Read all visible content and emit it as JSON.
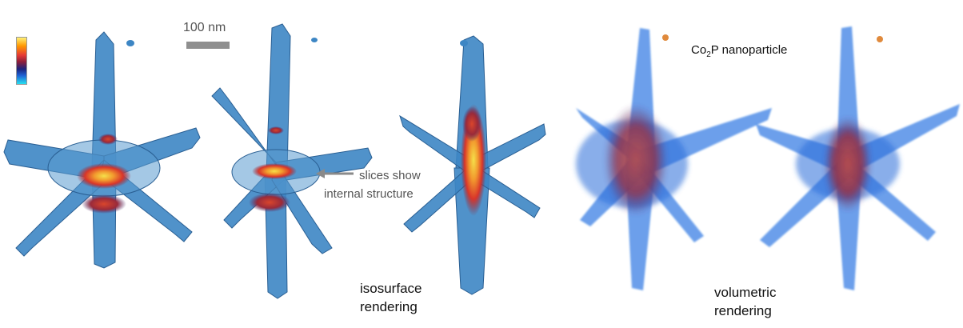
{
  "scale_bar": {
    "label": "100 nm"
  },
  "annotations": {
    "particle_prefix": "Co",
    "particle_sub": "2",
    "particle_suffix": "P nanoparticle",
    "slices_line1": "slices show",
    "slices_line2": "internal structure",
    "iso_line1": "isosurface",
    "iso_line2": "rendering",
    "vol_line1": "volumetric",
    "vol_line2": "rendering"
  },
  "colors": {
    "iso_fill": "#3d86c4",
    "iso_edge": "#2a5f93",
    "vol_fill": "#1f6be0",
    "hot_core": "#e5452a",
    "hot_center": "#f2c230",
    "particle": "#e08a3c"
  }
}
